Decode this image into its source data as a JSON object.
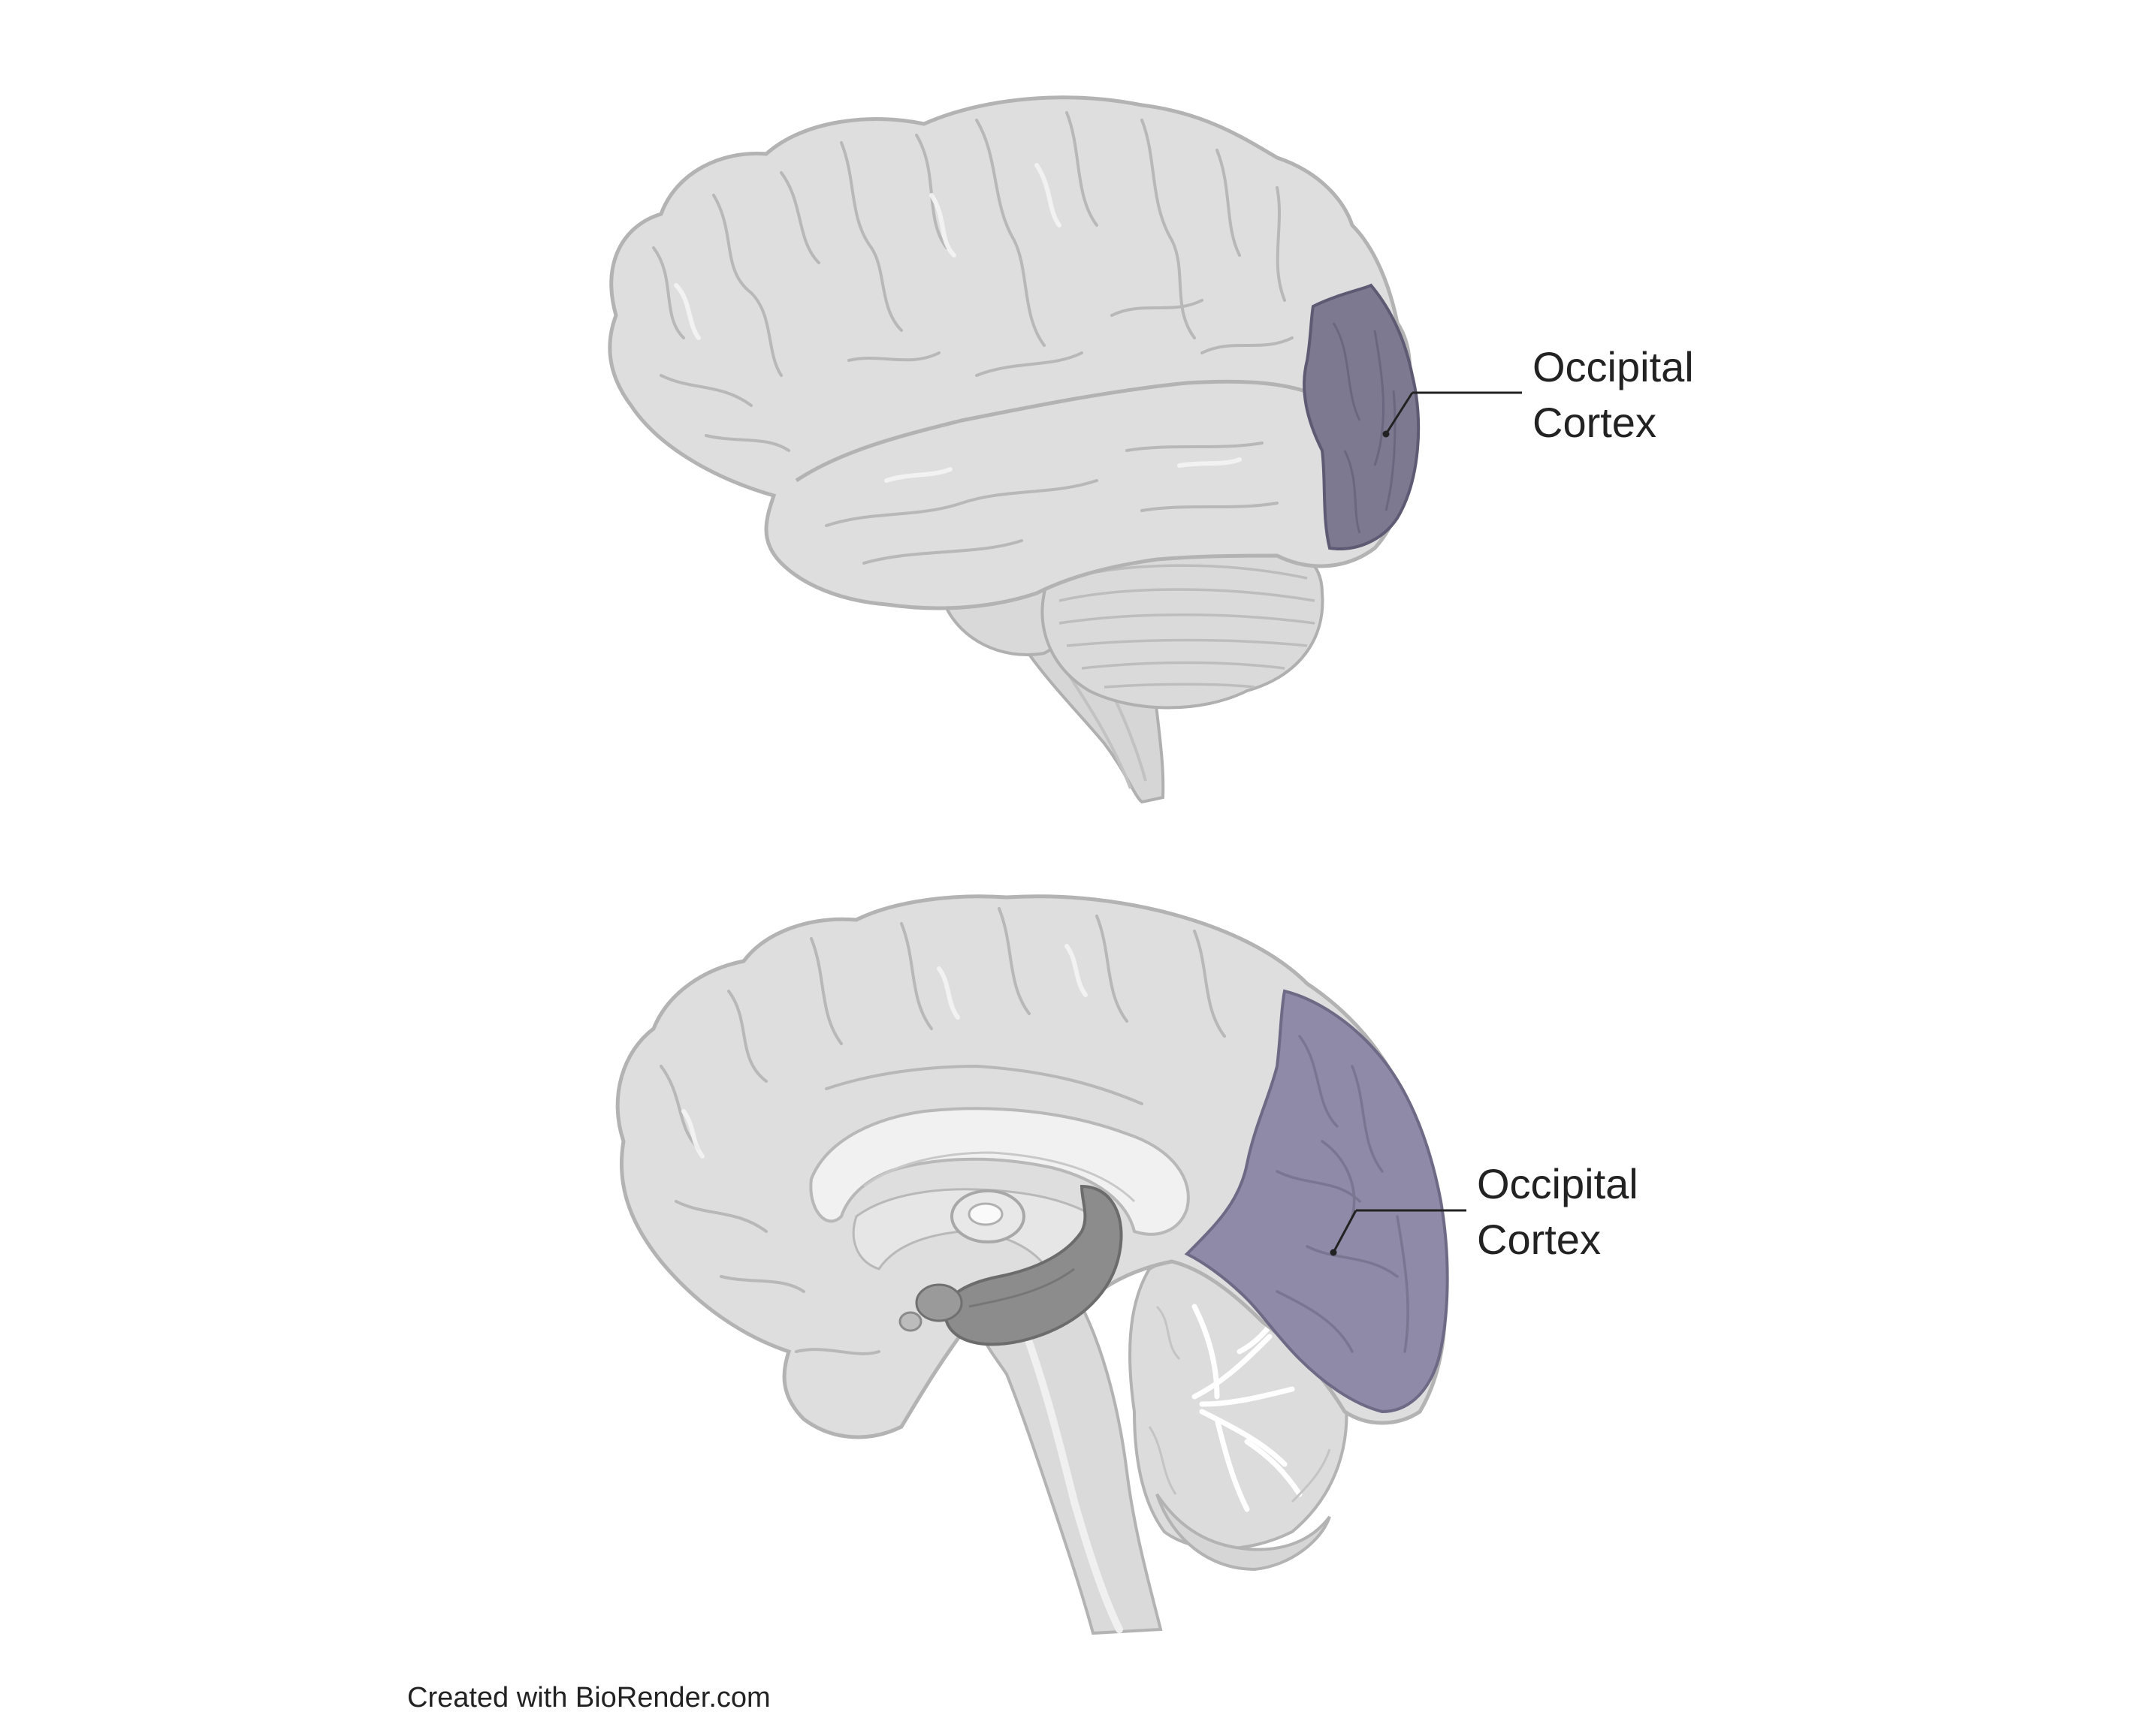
{
  "diagram": {
    "labels": {
      "lateral": {
        "line1": "Occipital",
        "line2": "Cortex"
      },
      "medial": {
        "line1": "Occipital",
        "line2": "Cortex"
      }
    },
    "credit": "Created with BioRender.com"
  },
  "colors": {
    "brain_fill": "#dedede",
    "brain_stroke": "#b3b3b3",
    "gyri_line": "#b8b8b8",
    "highlight": "#c9c9c9",
    "occipital_fill_lateral": "#7d7990",
    "occipital_fill_medial": "#8e8aa8",
    "occipital_stroke": "#5e5a73",
    "leader_line": "#222222",
    "text": "#222222"
  }
}
